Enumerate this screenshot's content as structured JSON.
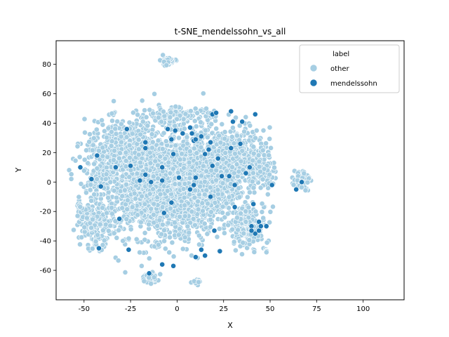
{
  "chart_data": {
    "type": "scatter",
    "title": "t-SNE_mendelssohn_vs_all",
    "xlabel": "X",
    "ylabel": "Y",
    "xlim": [
      -65,
      122
    ],
    "ylim": [
      -80,
      96
    ],
    "xticks": [
      -50,
      -25,
      0,
      25,
      50,
      75,
      100
    ],
    "yticks": [
      -60,
      -40,
      -20,
      0,
      20,
      40,
      60,
      80
    ],
    "grid": false,
    "legend": {
      "title": "label",
      "placement": "top-right",
      "entries": [
        {
          "name": "other",
          "color": "#a6cee3"
        },
        {
          "name": "mendelssohn",
          "color": "#1f78b4"
        }
      ]
    },
    "series": [
      {
        "name": "other",
        "color": "#a6cee3",
        "clusters": [
          {
            "cx": -12,
            "cy": -2,
            "sx": 22,
            "sy": 25,
            "n": 1600
          },
          {
            "cx": 10,
            "cy": 0,
            "sx": 16,
            "sy": 24,
            "n": 900
          },
          {
            "cx": -30,
            "cy": 18,
            "sx": 14,
            "sy": 16,
            "n": 550
          },
          {
            "cx": 30,
            "cy": 15,
            "sx": 12,
            "sy": 15,
            "n": 450
          },
          {
            "cx": -44,
            "cy": -30,
            "sx": 6,
            "sy": 10,
            "n": 160
          },
          {
            "cx": 38,
            "cy": -30,
            "sx": 7,
            "sy": 10,
            "n": 160
          },
          {
            "cx": 45,
            "cy": 10,
            "sx": 5,
            "sy": 12,
            "n": 110
          },
          {
            "cx": 67,
            "cy": 2,
            "sx": 3,
            "sy": 5,
            "n": 75
          },
          {
            "cx": -5,
            "cy": 82,
            "sx": 3,
            "sy": 2,
            "n": 55
          },
          {
            "cx": -15,
            "cy": -65,
            "sx": 3.5,
            "sy": 2.5,
            "n": 45
          },
          {
            "cx": 10,
            "cy": -68,
            "sx": 2,
            "sy": 1.2,
            "n": 14
          },
          {
            "cx": 48,
            "cy": -47,
            "sx": 1.5,
            "sy": 1,
            "n": 6
          },
          {
            "cx": -52,
            "cy": -18,
            "sx": 2,
            "sy": 4,
            "n": 14
          },
          {
            "cx": 0,
            "cy": 45,
            "sx": 14,
            "sy": 4,
            "n": 140
          }
        ]
      },
      {
        "name": "mendelssohn",
        "color": "#1f78b4",
        "points": [
          [
            -52,
            10
          ],
          [
            -46,
            2
          ],
          [
            -43,
            18
          ],
          [
            -41,
            -3
          ],
          [
            -33,
            10
          ],
          [
            -31,
            -25
          ],
          [
            -27,
            36
          ],
          [
            -25,
            11
          ],
          [
            -20,
            1
          ],
          [
            -17,
            27
          ],
          [
            -17,
            23
          ],
          [
            -17,
            5
          ],
          [
            -14,
            0
          ],
          [
            -8,
            10
          ],
          [
            -8,
            1
          ],
          [
            -5,
            36
          ],
          [
            -3,
            29
          ],
          [
            -1,
            35
          ],
          [
            -2,
            19
          ],
          [
            -3,
            -14
          ],
          [
            -7,
            -21
          ],
          [
            -15,
            -62
          ],
          [
            -2,
            -57
          ],
          [
            -26,
            -46
          ],
          [
            -42,
            -45
          ],
          [
            1,
            3
          ],
          [
            3,
            33
          ],
          [
            7,
            37
          ],
          [
            8,
            33
          ],
          [
            9,
            28
          ],
          [
            10,
            29
          ],
          [
            10,
            3
          ],
          [
            9,
            -2
          ],
          [
            7,
            -5
          ],
          [
            13,
            31
          ],
          [
            17,
            22
          ],
          [
            15,
            19
          ],
          [
            18,
            27
          ],
          [
            19,
            46
          ],
          [
            21,
            47
          ],
          [
            22,
            16
          ],
          [
            19,
            11
          ],
          [
            18,
            -10
          ],
          [
            13,
            -46
          ],
          [
            10,
            -51
          ],
          [
            15,
            -50
          ],
          [
            20,
            -33
          ],
          [
            23,
            -47
          ],
          [
            24,
            4
          ],
          [
            28,
            4
          ],
          [
            29,
            23
          ],
          [
            29,
            48
          ],
          [
            30,
            41
          ],
          [
            31,
            -2
          ],
          [
            31,
            -17
          ],
          [
            34,
            26
          ],
          [
            35,
            41
          ],
          [
            37,
            6
          ],
          [
            39,
            10
          ],
          [
            42,
            46
          ],
          [
            40,
            -30
          ],
          [
            42,
            -35
          ],
          [
            41,
            -15
          ],
          [
            44,
            -27
          ],
          [
            44,
            -33
          ],
          [
            48,
            -30
          ],
          [
            51,
            -2
          ],
          [
            64,
            -5
          ],
          [
            67,
            0
          ],
          [
            -8,
            -56
          ],
          [
            40,
            -33
          ],
          [
            45,
            -30
          ]
        ]
      }
    ]
  }
}
